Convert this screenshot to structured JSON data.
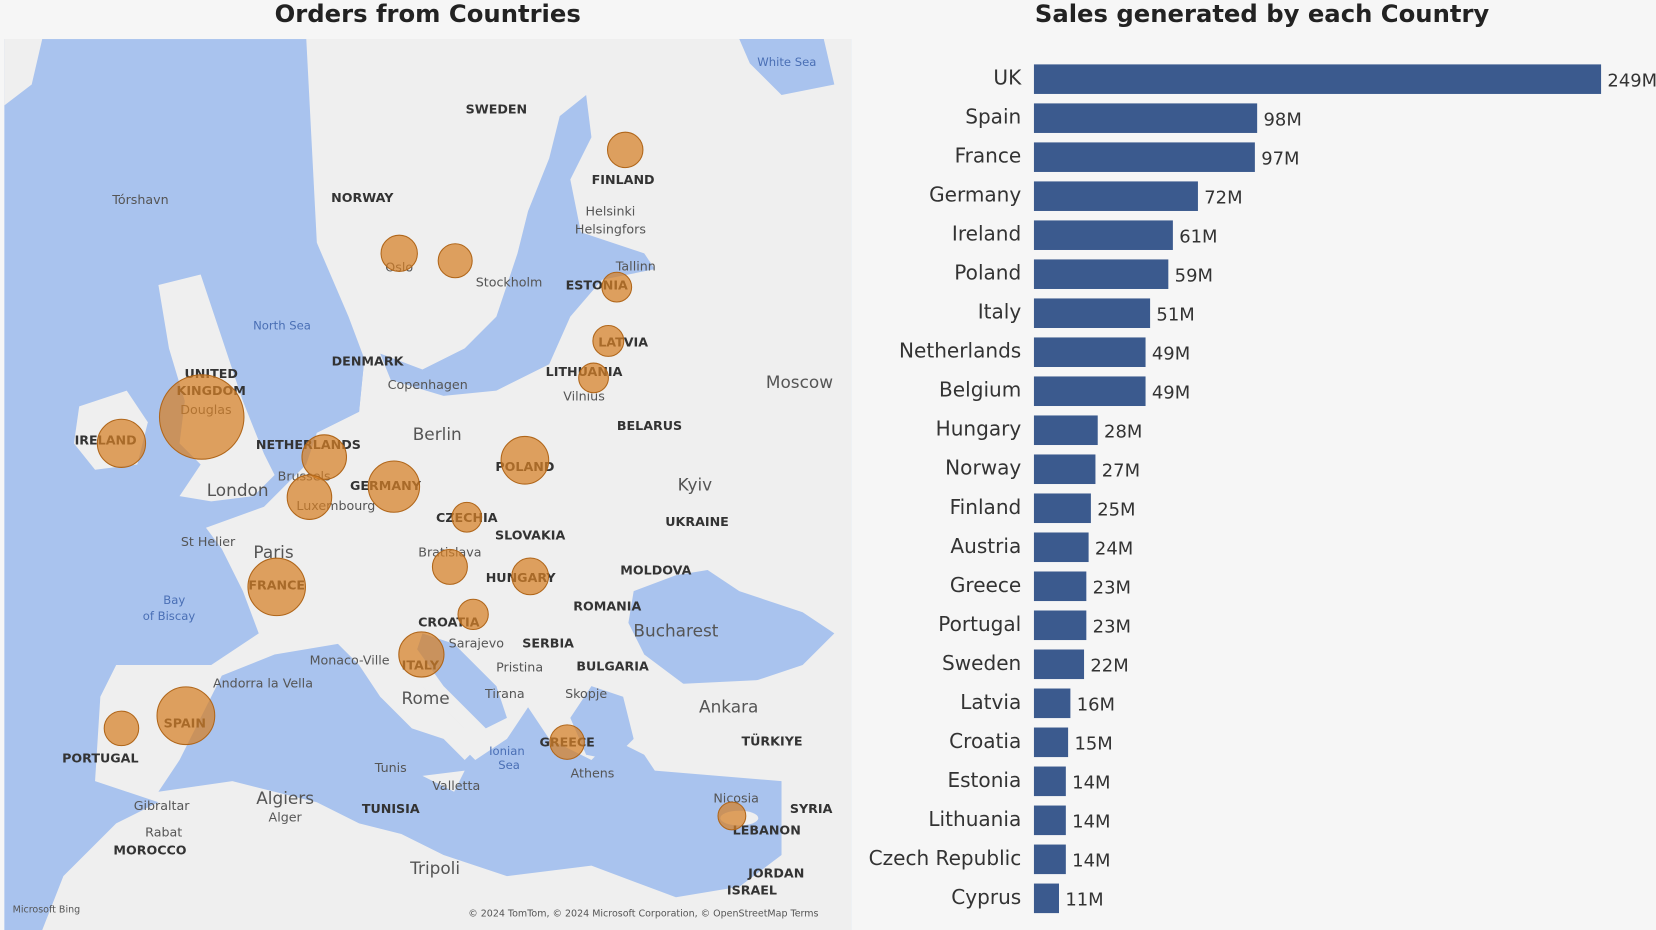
{
  "chart_data": [
    {
      "type": "map",
      "title": "Orders from Countries",
      "labels": [
        "SWEDEN",
        "NORWAY",
        "FINLAND",
        "Tórshavn",
        "Helsinki",
        "Helsingfors",
        "Tallinn",
        "Stockholm",
        "ESTONIA",
        "Oslo",
        "North Sea",
        "DENMARK",
        "Copenhagen",
        "LATVIA",
        "LITHUANIA",
        "Vilnius",
        "Moscow",
        "UNITED",
        "KINGDOM",
        "Douglas",
        "BELARUS",
        "IRELAND",
        "NETHERLANDS",
        "Berlin",
        "POLAND",
        "London",
        "Brussels",
        "GERMANY",
        "Luxembourg",
        "Kyiv",
        "UKRAINE",
        "CZECHIA",
        "SLOVAKIA",
        "St Helier",
        "Paris",
        "Bratislava",
        "MOLDOVA",
        "HUNGARY",
        "FRANCE",
        "Bay",
        "of Biscay",
        "ROMANIA",
        "CROATIA",
        "Bucharest",
        "SERBIA",
        "Sarajevo",
        "Monaco-Ville",
        "ITALY",
        "Pristina",
        "BULGARIA",
        "Andorra la Vella",
        "Tirana",
        "Skopje",
        "Rome",
        "Ankara",
        "SPAIN",
        "TÜRKIYE",
        "GREECE",
        "PORTUGAL",
        "Ionian",
        "Sea",
        "Tunis",
        "Athens",
        "Algiers",
        "Alger",
        "Valletta",
        "Nicosia",
        "Gibraltar",
        "SYRIA",
        "TUNISIA",
        "LEBANON",
        "Rabat",
        "MOROCCO",
        "Tripoli",
        "JORDAN",
        "ISRAEL",
        "White Sea"
      ],
      "logo": "Microsoft Bing",
      "attribution": "© 2024 TomTom, © 2024 Microsoft Corporation, © OpenStreetMap  Terms"
    },
    {
      "type": "bar",
      "orientation": "horizontal",
      "title": "Sales generated by each Country",
      "color": "#3b5a8e",
      "categories": [
        "UK",
        "Spain",
        "France",
        "Germany",
        "Ireland",
        "Poland",
        "Italy",
        "Netherlands",
        "Belgium",
        "Hungary",
        "Norway",
        "Finland",
        "Austria",
        "Greece",
        "Portugal",
        "Sweden",
        "Latvia",
        "Croatia",
        "Estonia",
        "Lithuania",
        "Czech Republic",
        "Cyprus"
      ],
      "values": [
        249000000,
        98000000,
        97000000,
        72000000,
        61000000,
        59000000,
        51000000,
        49000000,
        49000000,
        28000000,
        27000000,
        25000000,
        24000000,
        23000000,
        23000000,
        22000000,
        16000000,
        15000000,
        14000000,
        14000000,
        14000000,
        11000000
      ],
      "value_labels": [
        "249M",
        "98M",
        "97M",
        "72M",
        "61M",
        "59M",
        "51M",
        "49M",
        "49M",
        "28M",
        "27M",
        "25M",
        "24M",
        "23M",
        "23M",
        "22M",
        "16M",
        "15M",
        "14M",
        "14M",
        "14M",
        "11M"
      ]
    }
  ]
}
